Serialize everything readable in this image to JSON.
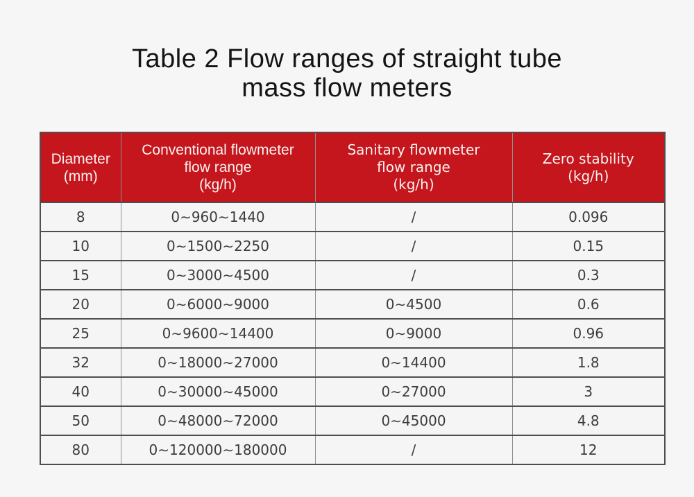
{
  "colors": {
    "page_background": "#f6f6f6",
    "header_background": "#c4161c",
    "header_text": "#faf2f2",
    "body_text": "#3c3c3c",
    "grid_line": "#4e4e4e"
  },
  "title": {
    "line1": "Table 2 Flow ranges of straight tube",
    "line2": "mass flow meters"
  },
  "table": {
    "columns": [
      {
        "label": "Diameter\n(mm)"
      },
      {
        "label": "Conventional flowmeter\nflow range\n(kg/h)"
      },
      {
        "label": "Sanitary flowmeter\nflow range\n(kg/h)"
      },
      {
        "label": "Zero stability\n(kg/h)"
      }
    ],
    "rows": [
      [
        "8",
        "0∼960∼1440",
        "/",
        "0.096"
      ],
      [
        "10",
        "0∼1500∼2250",
        "/",
        "0.15"
      ],
      [
        "15",
        "0∼3000∼4500",
        "/",
        "0.3"
      ],
      [
        "20",
        "0∼6000∼9000",
        "0∼4500",
        "0.6"
      ],
      [
        "25",
        "0∼9600∼14400",
        "0∼9000",
        "0.96"
      ],
      [
        "32",
        "0∼18000∼27000",
        "0∼14400",
        "1.8"
      ],
      [
        "40",
        "0∼30000∼45000",
        "0∼27000",
        "3"
      ],
      [
        "50",
        "0∼48000∼72000",
        "0∼45000",
        "4.8"
      ],
      [
        "80",
        "0∼120000∼180000",
        "/",
        "12"
      ]
    ]
  }
}
